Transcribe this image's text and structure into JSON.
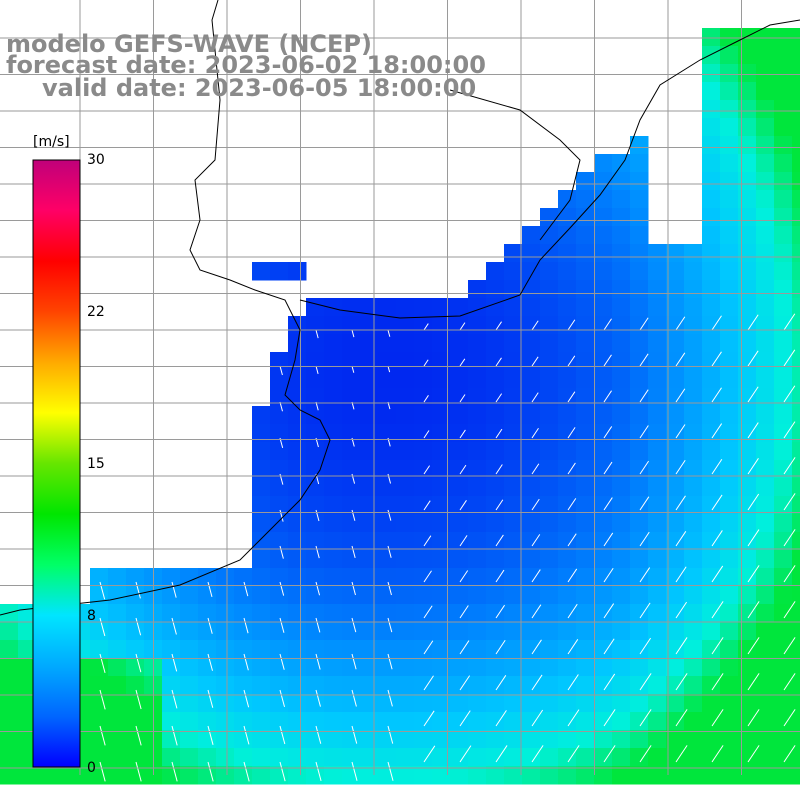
{
  "title": {
    "line1": "modelo GEFS-WAVE (NCEP)",
    "line2": "forecast date: 2023-06-02 18:00:00",
    "line3": "valid date: 2023-06-05 18:00:00"
  },
  "colorbar": {
    "unit": "[m/s]",
    "ticks": [
      "30",
      "22",
      "15",
      "8",
      "0"
    ],
    "tick_values": [
      30,
      22,
      15,
      8,
      0
    ],
    "colors": [
      "#0000ff",
      "#0066ff",
      "#00aaff",
      "#00e5ff",
      "#00ff66",
      "#00e600",
      "#66e600",
      "#ffff00",
      "#ffaa00",
      "#ff4400",
      "#ff0000",
      "#ff0066",
      "#c0007a"
    ]
  },
  "map": {
    "field": "wind speed",
    "unit": "m/s",
    "land_color": "#ffffff",
    "grid_color": "#9a9a9a",
    "coastline_color": "#000000",
    "arrow_color": "#ffffff"
  }
}
